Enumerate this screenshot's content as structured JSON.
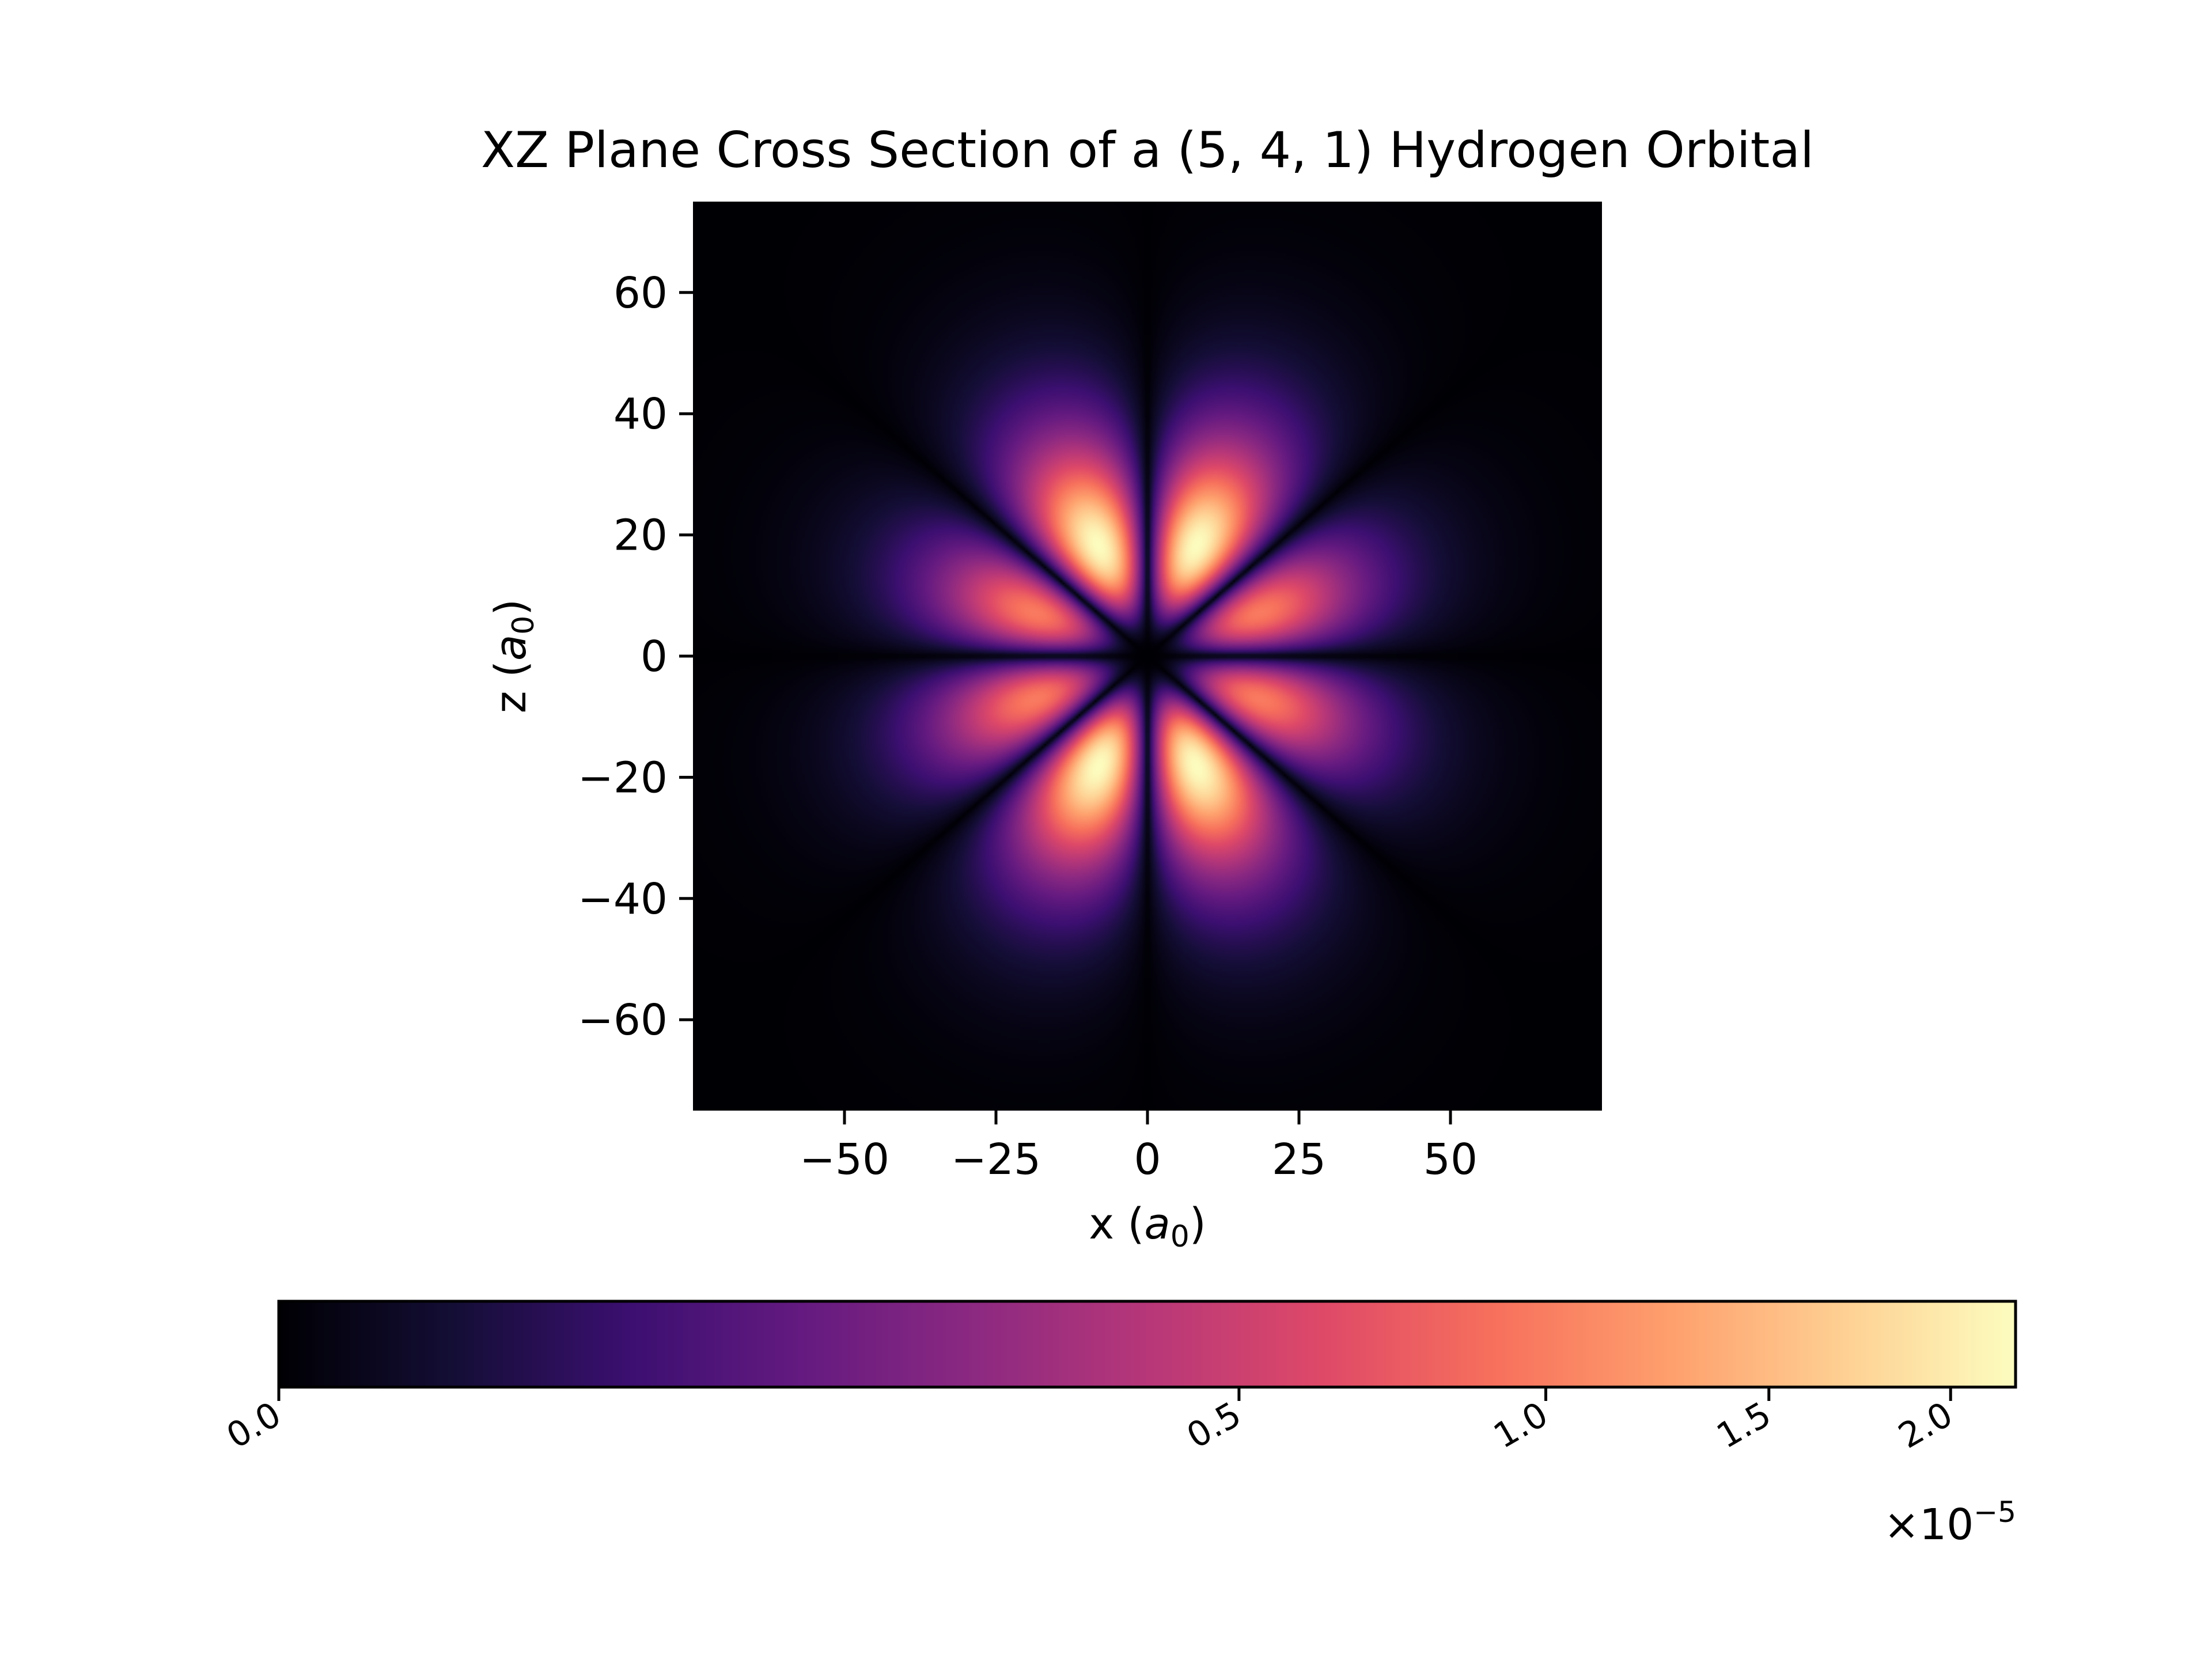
{
  "chart_data": {
    "type": "heatmap",
    "title": "XZ Plane Cross Section of a (5, 4, 1) Hydrogen Orbital",
    "colormap": "magma",
    "xlabel": {
      "prefix": "x (",
      "symbol": "a",
      "subscript": "0",
      "suffix": ")"
    },
    "ylabel": {
      "prefix": "z (",
      "symbol": "a",
      "subscript": "0",
      "suffix": ")"
    },
    "xlim": [
      -75,
      75
    ],
    "ylim": [
      -75,
      75
    ],
    "x_ticks": [
      {
        "value": -50,
        "label": "−50"
      },
      {
        "value": -25,
        "label": "−25"
      },
      {
        "value": 0,
        "label": "0"
      },
      {
        "value": 25,
        "label": "25"
      },
      {
        "value": 50,
        "label": "50"
      }
    ],
    "y_ticks": [
      {
        "value": 60,
        "label": "60"
      },
      {
        "value": 40,
        "label": "40"
      },
      {
        "value": 20,
        "label": "20"
      },
      {
        "value": 0,
        "label": "0"
      },
      {
        "value": -20,
        "label": "−20"
      },
      {
        "value": -40,
        "label": "−40"
      },
      {
        "value": -60,
        "label": "−60"
      }
    ],
    "quantum_numbers": {
      "n": 5,
      "l": 4,
      "m": 1
    },
    "value_max": 2.2e-05,
    "colorbar": {
      "orientation": "horizontal",
      "scale": "power",
      "gamma": 0.4,
      "range": [
        0,
        2.2
      ],
      "ticks": [
        {
          "value": 0.0,
          "label": "0.0"
        },
        {
          "value": 0.5,
          "label": "0.5"
        },
        {
          "value": 1.0,
          "label": "1.0"
        },
        {
          "value": 1.5,
          "label": "1.5"
        },
        {
          "value": 2.0,
          "label": "2.0"
        }
      ],
      "offset_text": {
        "base": "×10",
        "exponent": "−5"
      }
    }
  }
}
